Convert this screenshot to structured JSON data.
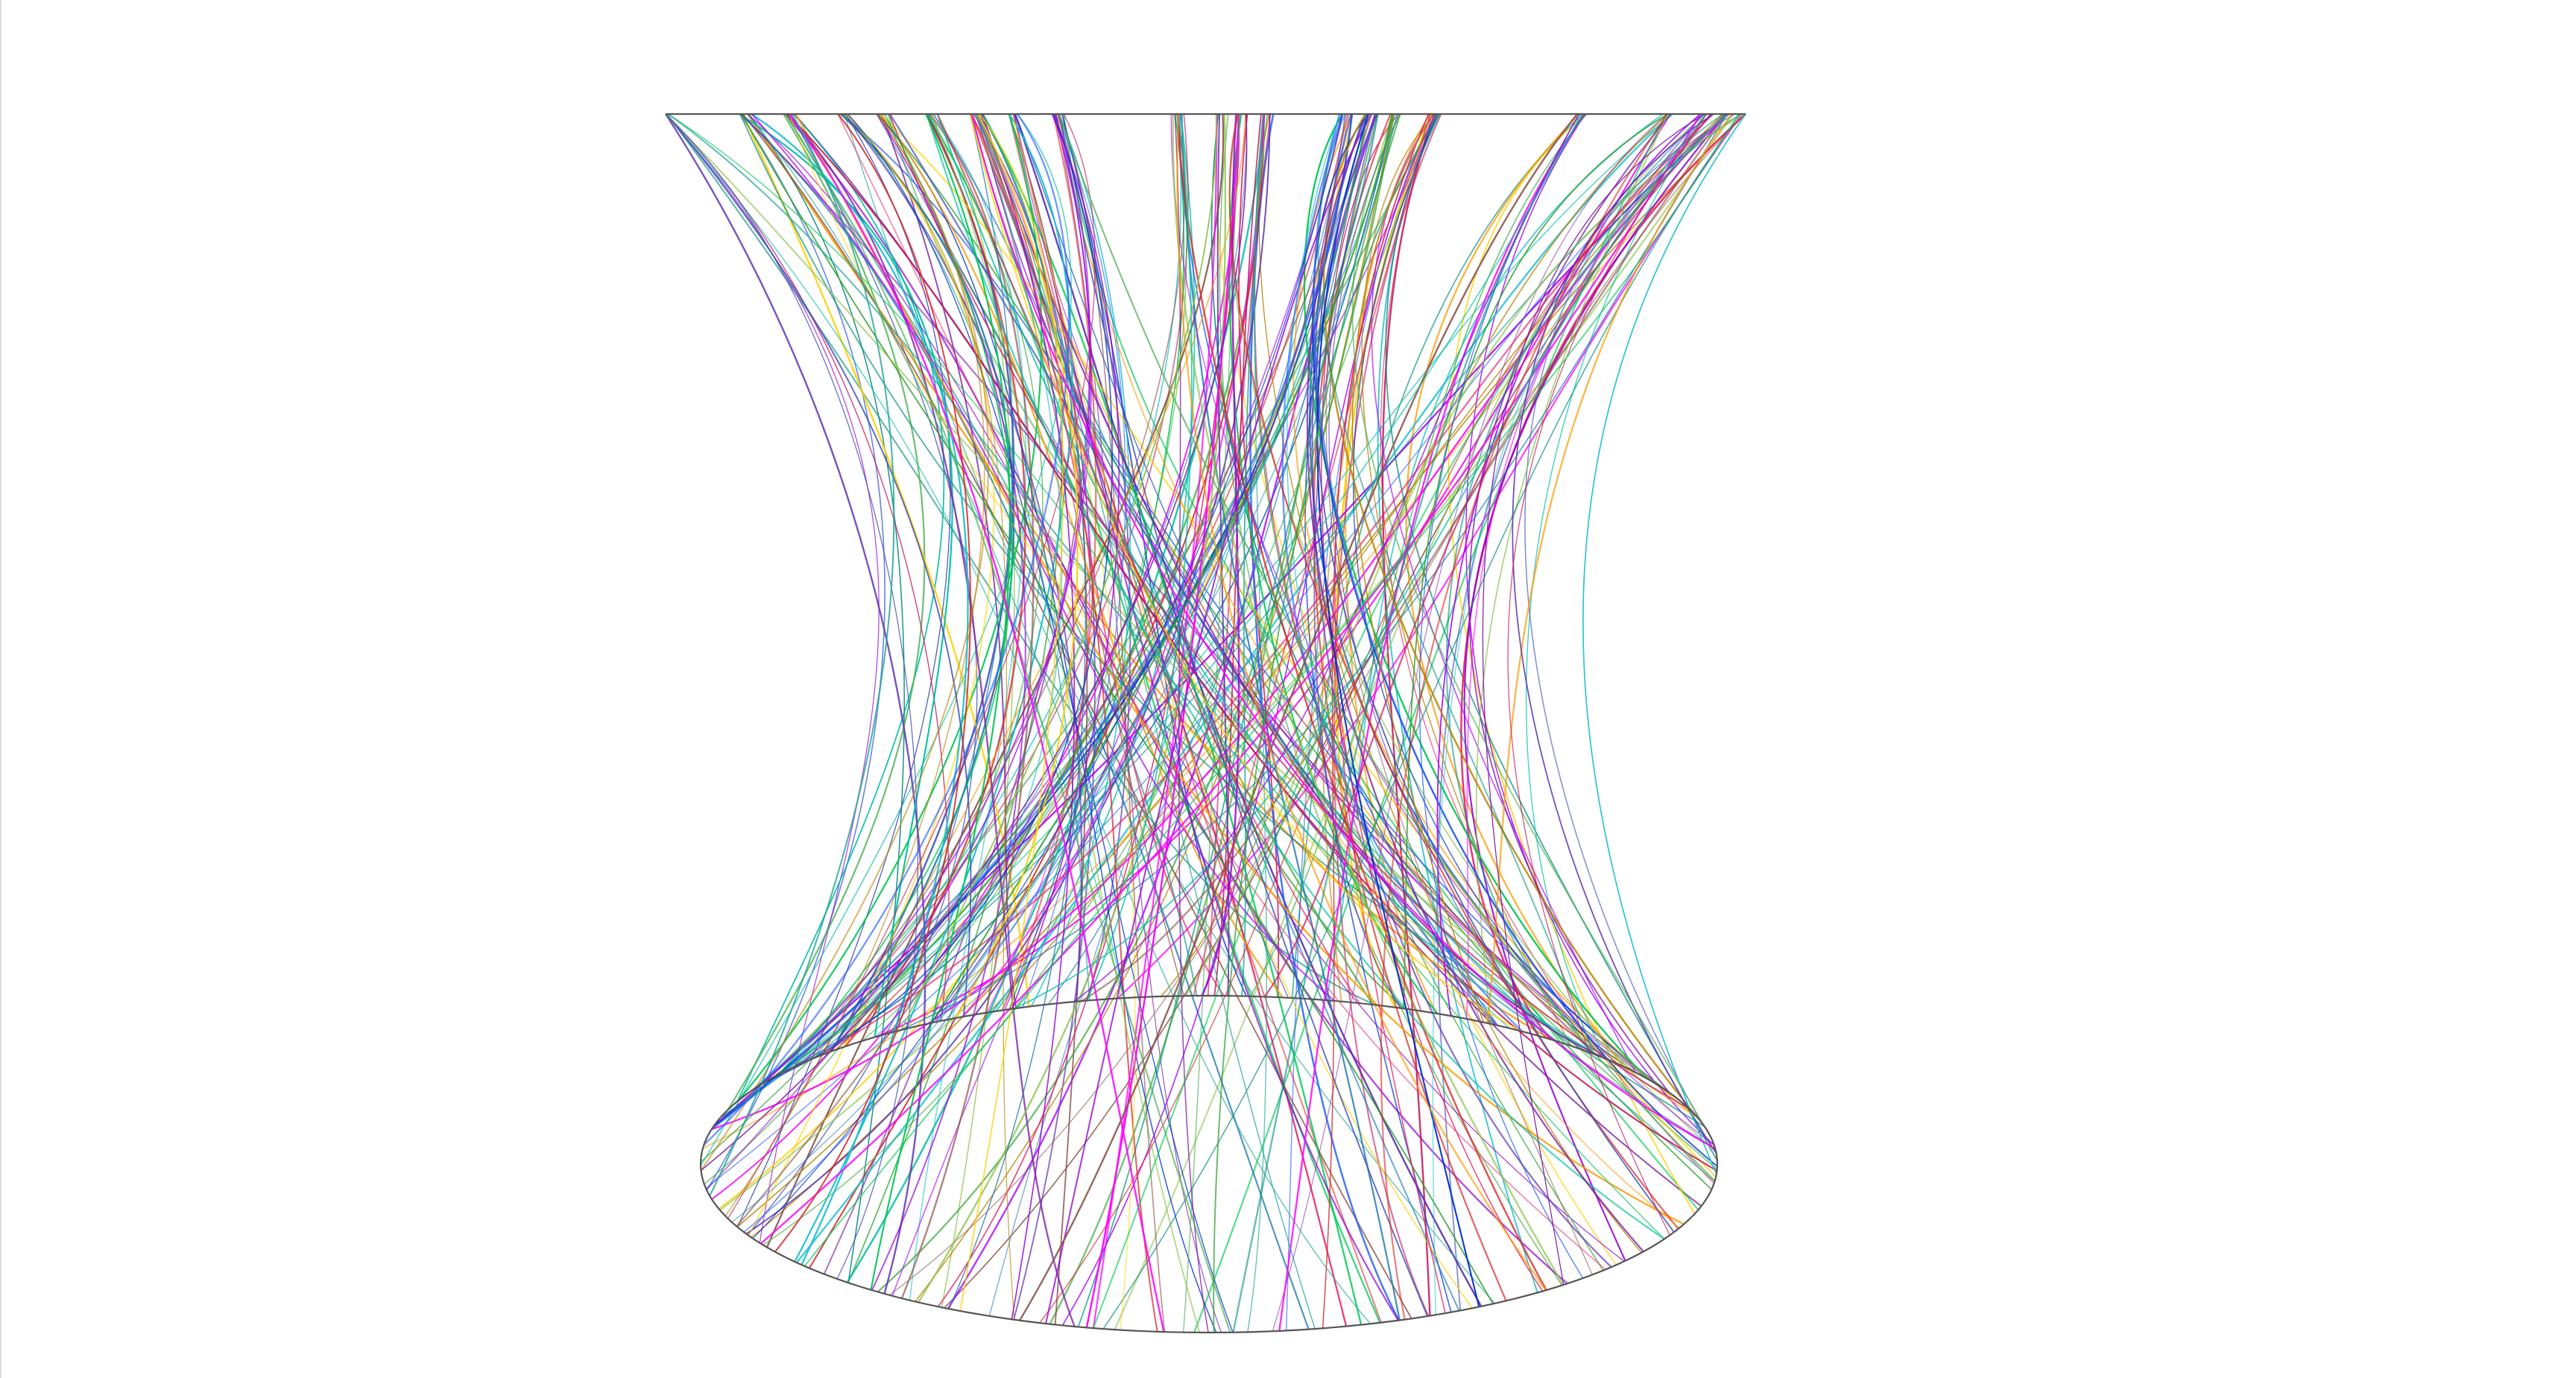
{
  "figure": {
    "outline_color": "#555555",
    "background": "#ffffff",
    "strand_colors": [
      "#1f77b4",
      "#2ca02c",
      "#d62728",
      "#9400d3",
      "#ff00ff",
      "#17becf",
      "#00c853",
      "#ffd000",
      "#8c564b",
      "#0033cc",
      "#00bfa5",
      "#7b1fa2",
      "#e91e63",
      "#4caf50",
      "#3f51b5",
      "#ff9800",
      "#00897b",
      "#aa00ff",
      "#8bc34a",
      "#2962ff",
      "#c2185b",
      "#26a69a",
      "#b8860b",
      "#5e35b1"
    ]
  }
}
